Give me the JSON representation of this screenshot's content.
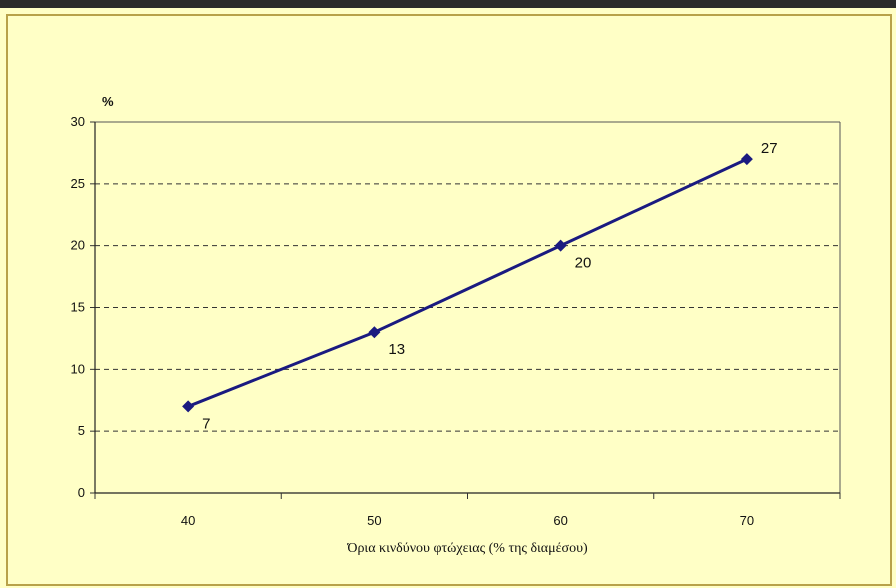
{
  "chart_data": {
    "type": "line",
    "title": "",
    "ylabel": "%",
    "xlabel": "Όρια κινδύνου φτώχειας (% της διαμέσου)",
    "x": [
      40,
      50,
      60,
      70
    ],
    "y_ticks": [
      0,
      5,
      10,
      15,
      20,
      25,
      30
    ],
    "x_ticks": [
      40,
      50,
      60,
      70
    ],
    "ylim": [
      0,
      30
    ],
    "xlim": [
      35,
      75
    ],
    "grid": "horizontal dashed",
    "legend": "none",
    "series": [
      {
        "values": [
          7,
          13,
          20,
          27
        ],
        "data_labels": [
          "7",
          "13",
          "20",
          "27"
        ],
        "color": "#1a1a80",
        "marker": "diamond"
      }
    ]
  },
  "colors": {
    "background": "#ffffc6",
    "border": "#b8a24a",
    "line": "#1a1a80",
    "grid": "#333333"
  }
}
